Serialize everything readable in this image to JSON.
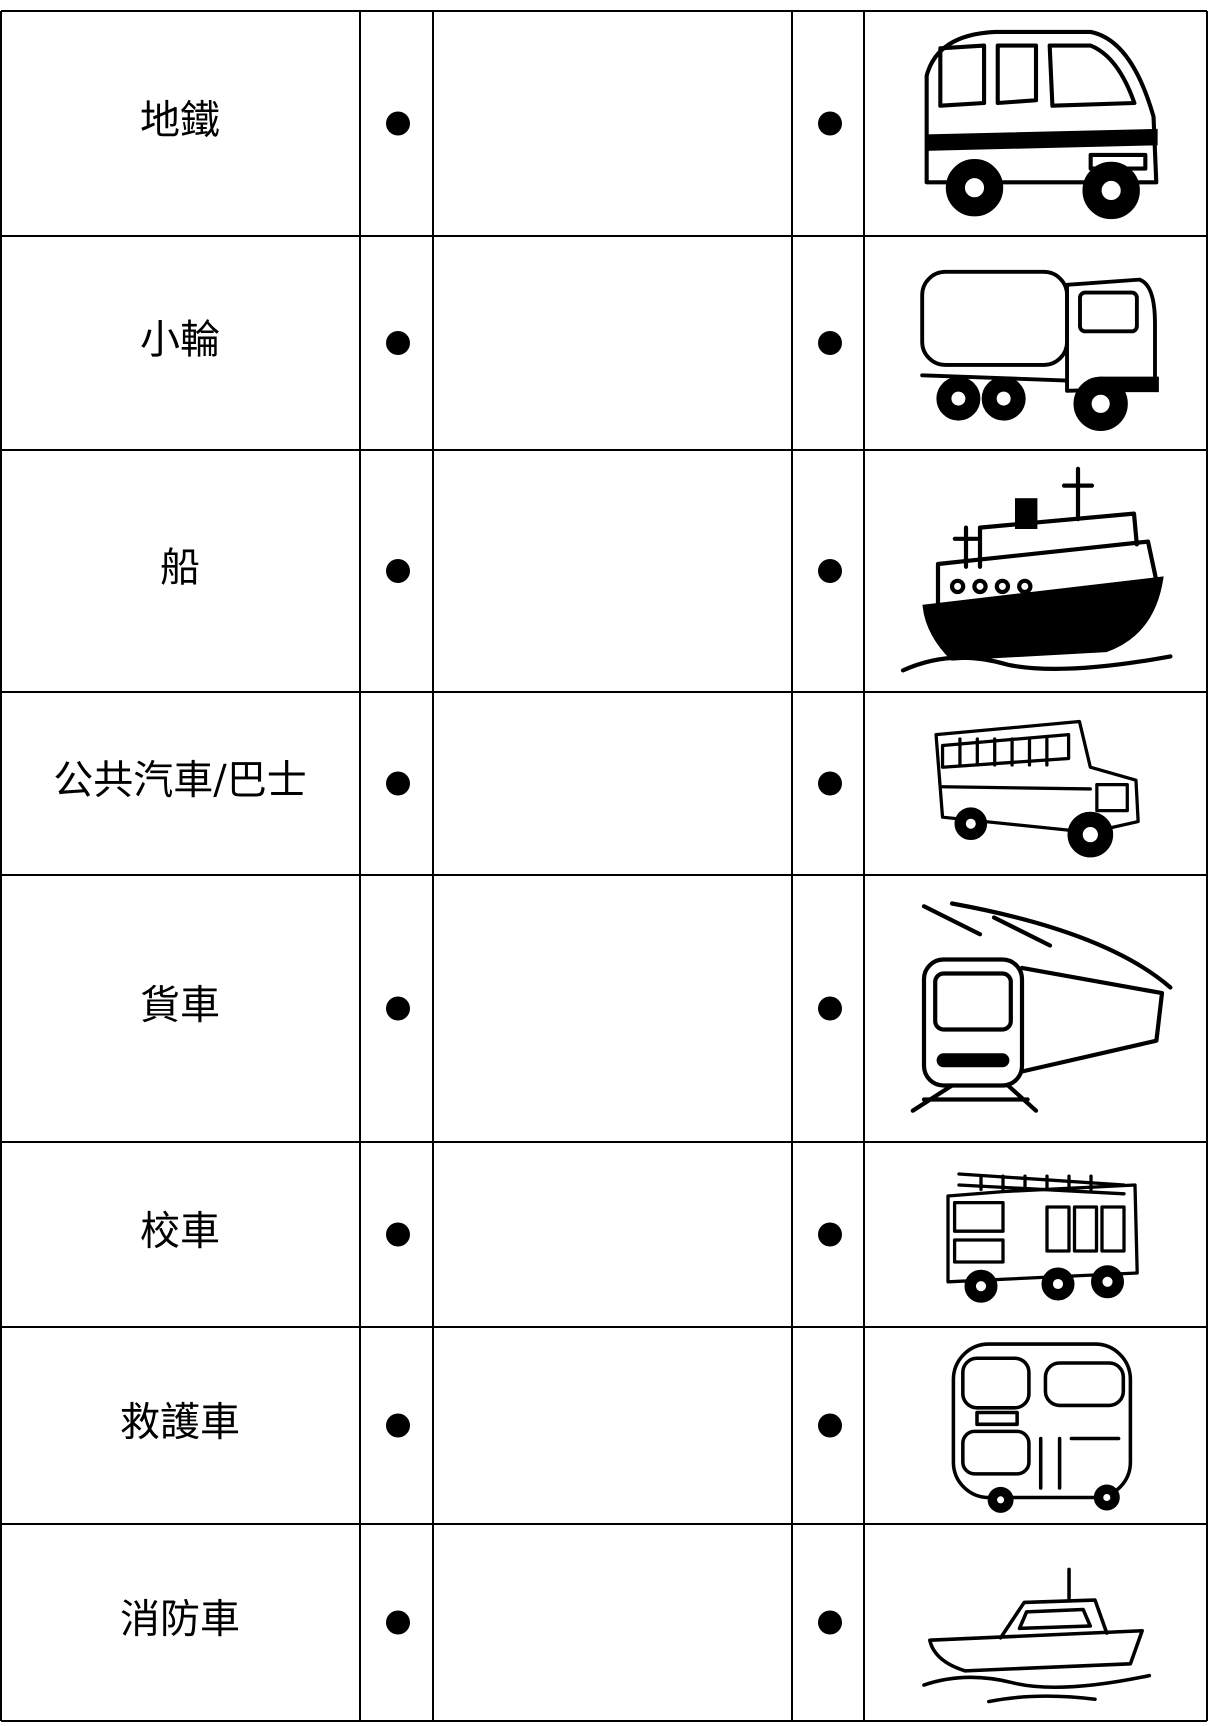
{
  "rows": [
    {
      "label": "地鐵"
    },
    {
      "label": "小輪"
    },
    {
      "label": "船"
    },
    {
      "label": "公共汽車/巴士"
    },
    {
      "label": "貨車"
    },
    {
      "label": "校車"
    },
    {
      "label": "救護車"
    },
    {
      "label": "消防車"
    }
  ]
}
